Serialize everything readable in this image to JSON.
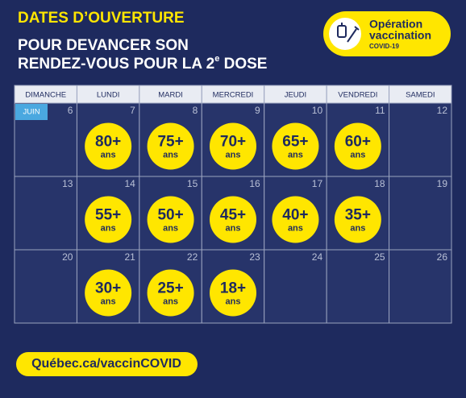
{
  "header": {
    "title": "DATES D’OUVERTURE",
    "subtitle_line1": "POUR DEVANCER SON",
    "subtitle_line2_start": "RENDEZ-VOUS POUR LA 2",
    "subtitle_line2_sup": "e",
    "subtitle_line2_end": " DOSE"
  },
  "badge": {
    "line1": "Opération",
    "line2": "vaccination",
    "line3": "COVID-19"
  },
  "calendar": {
    "weekdays": [
      "DIMANCHE",
      "LUNDI",
      "MARDI",
      "MERCREDI",
      "JEUDI",
      "VENDREDI",
      "SAMEDI"
    ],
    "month": "JUIN",
    "weeks": [
      [
        {
          "day": "6"
        },
        {
          "day": "7",
          "age": "80+",
          "unit": "ans"
        },
        {
          "day": "8",
          "age": "75+",
          "unit": "ans"
        },
        {
          "day": "9",
          "age": "70+",
          "unit": "ans"
        },
        {
          "day": "10",
          "age": "65+",
          "unit": "ans"
        },
        {
          "day": "11",
          "age": "60+",
          "unit": "ans"
        },
        {
          "day": "12"
        }
      ],
      [
        {
          "day": "13"
        },
        {
          "day": "14",
          "age": "55+",
          "unit": "ans"
        },
        {
          "day": "15",
          "age": "50+",
          "unit": "ans"
        },
        {
          "day": "16",
          "age": "45+",
          "unit": "ans"
        },
        {
          "day": "17",
          "age": "40+",
          "unit": "ans"
        },
        {
          "day": "18",
          "age": "35+",
          "unit": "ans"
        },
        {
          "day": "19"
        }
      ],
      [
        {
          "day": "20"
        },
        {
          "day": "21",
          "age": "30+",
          "unit": "ans"
        },
        {
          "day": "22",
          "age": "25+",
          "unit": "ans"
        },
        {
          "day": "23",
          "age": "18+",
          "unit": "ans"
        },
        {
          "day": "24"
        },
        {
          "day": "25"
        },
        {
          "day": "26"
        }
      ]
    ]
  },
  "footer": {
    "link": "Québec.ca/vaccinCOVID"
  }
}
